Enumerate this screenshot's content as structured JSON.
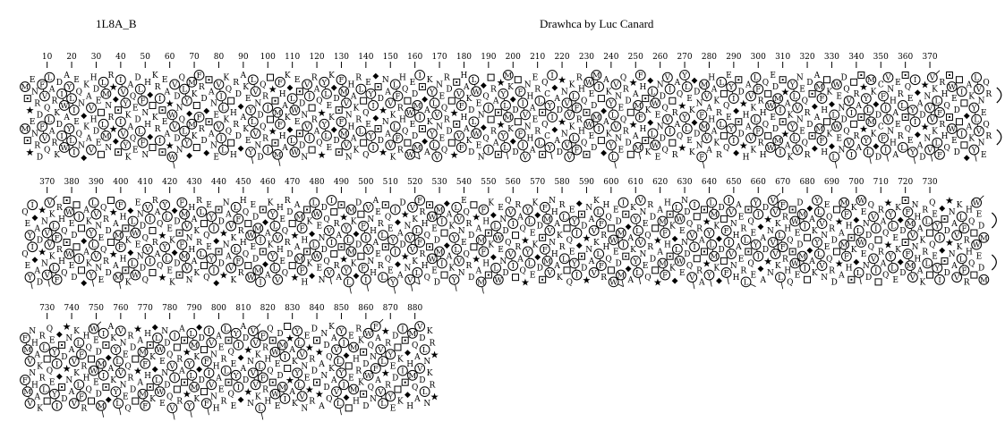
{
  "title": "1L8A_B",
  "credit": "Drawhca by Luc Canard",
  "colors": {
    "ink": "#000000",
    "background": "#ffffff"
  },
  "legend": {
    "proline": "filled-star",
    "glycine": "filled-diamond",
    "serine": "dotted-square",
    "threonine": "open-square",
    "hydrophobic_residues": "VILFMWY"
  },
  "sequence": "MSPENRDFVQLARKDIWAYLIEQNGKAVHDETLMNRPGSIVYKAQEDLFNHGTKRISEAPWVDNQLYGMKTFRDGSANEVILKQTHRDGAKEYLVNDQRITPSMFHAKGLWESDNVITRAQPYLEKGDSFMVNHAKRLTQEYIGSDPNAVKLFRHQTWEDMISGAKYLVNEQRDTPSVFHAKDLWENGQITRASPYLMKGDTFIVNHAERLSQCYIGADPNVVKLFRHQSWEDMITGAKYLVNEQRDTPAMFHSKGLWENDQVITRAQPYLEKGDNFMVAHAKRLTQEYIGSDPHAVKLFRHQTWEDMISPAKYLVNEQRDSGAMFHTKGLWENDQVITRASPYLMKGDCFIVNHAERLSQEYIGADPNVVKLFRHQSWEDTITGAKYLVNEQRDTPAMFHSKGLWENDQVITRAQPYLEKGDSFMVNHAKRLTQEYIGSDPNAVKLFRHQTWEDMISGAKYLVHEQRDTPAMFHSKGLWENDQVITRASPYLMKGDTFIVNHAERLSQEYIGADPNVVKLFRHQSWEDMITGAKYLVNEQRDTPAMFHSKGLWENDQVITRAQPYLEKGDSFMVNHAKRLTQEYIGSDPNAVKLFRHQTWEDMISGAKYLVNEQRDTPAMFHSKGLWENDQVITRASPYLMKGDTFIVNHAERLSQEYIGADPNVVKLFRHQSWEDMITGAKYLVNEQRDTPAMFHSKGLWENDQVITRAQPYLEKGDSFMVNHAKRLTQEYIGSDPNAVKLFRHQTWEDMISGAKYLVNEQRDTPAMFHSKGLWENDQVITRASPYLMKGDTFIVNHAERLSQEYIGADPNVVKLFRHQSWEDMITPAKYLVNEPRDSPANDQKAVLYIGTEMHRKSDWQNFAVLPRYEDTKISGHMQAVDLNKRPPSTYWIEAQGDHKMLVFANERSQ",
  "bands": [
    {
      "name": "band-1",
      "first_residue": 1,
      "last_residue": 394,
      "continuation": "right",
      "ticks": [
        10,
        20,
        30,
        40,
        50,
        60,
        70,
        80,
        90,
        100,
        110,
        120,
        130,
        140,
        150,
        160,
        170,
        180,
        190,
        200,
        210,
        220,
        230,
        240,
        250,
        260,
        270,
        280,
        290,
        300,
        310,
        320,
        330,
        340,
        350,
        360,
        370
      ]
    },
    {
      "name": "band-2",
      "first_residue": 361,
      "last_residue": 752,
      "continuation": "right",
      "ticks": [
        370,
        380,
        390,
        400,
        410,
        420,
        430,
        440,
        450,
        460,
        470,
        480,
        490,
        500,
        510,
        520,
        530,
        540,
        550,
        560,
        570,
        580,
        590,
        600,
        610,
        620,
        630,
        640,
        650,
        660,
        670,
        680,
        690,
        700,
        710,
        720,
        730
      ]
    },
    {
      "name": "band-3",
      "first_residue": 721,
      "last_residue": 888,
      "continuation": "none",
      "ticks": [
        730,
        740,
        750,
        760,
        770,
        780,
        790,
        800,
        810,
        820,
        830,
        840,
        850,
        860,
        870,
        880
      ]
    }
  ]
}
